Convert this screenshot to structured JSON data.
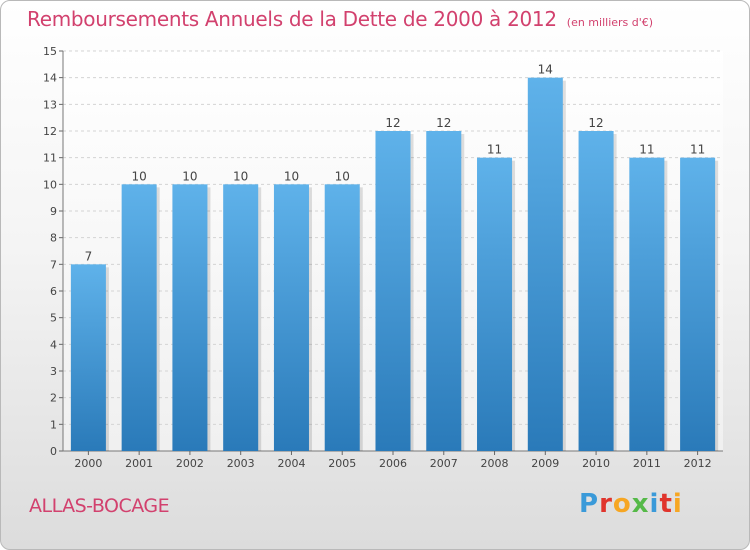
{
  "header": {
    "title": "Remboursements Annuels de la Dette de 2000 à 2012",
    "unit": "(en milliers d'€)"
  },
  "footer": {
    "town": "ALLAS-BOCAGE",
    "logo_letters": [
      "P",
      "r",
      "o",
      "x",
      "i",
      "t",
      "i"
    ],
    "logo_colors": [
      "#3a9ad9",
      "#e0342c",
      "#f6a623",
      "#55b948",
      "#3a9ad9",
      "#e0342c",
      "#f6a623"
    ]
  },
  "chart_data": {
    "type": "bar",
    "title": "Remboursements Annuels de la Dette de 2000 à 2012",
    "ylabel": "",
    "xlabel": "",
    "categories": [
      "2000",
      "2001",
      "2002",
      "2003",
      "2004",
      "2005",
      "2006",
      "2007",
      "2008",
      "2009",
      "2010",
      "2011",
      "2012"
    ],
    "values": [
      7,
      10,
      10,
      10,
      10,
      10,
      12,
      12,
      11,
      14,
      12,
      11,
      11
    ],
    "ylim": [
      0,
      15
    ],
    "yticks": [
      0,
      1,
      2,
      3,
      4,
      5,
      6,
      7,
      8,
      9,
      10,
      11,
      12,
      13,
      14,
      15
    ],
    "grid": true,
    "bar_color_top": "#5fb2ea",
    "bar_color_bottom": "#2a7ab9"
  }
}
